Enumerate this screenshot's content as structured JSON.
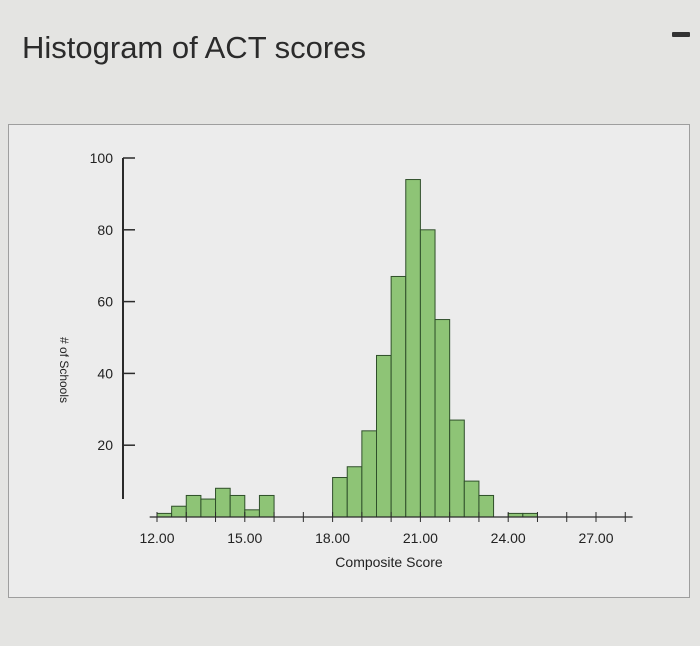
{
  "page": {
    "title": "Histogram of ACT scores"
  },
  "chart_data": {
    "type": "bar",
    "title": "",
    "xlabel": "Composite Score",
    "ylabel": "# of Schools",
    "xlim": [
      11.75,
      28.25
    ],
    "ylim": [
      0,
      100
    ],
    "x_ticks": [
      "12.00",
      "15.00",
      "18.00",
      "21.00",
      "24.00",
      "27.00"
    ],
    "y_ticks": [
      "20",
      "40",
      "60",
      "80",
      "100"
    ],
    "bin_width": 0.5,
    "bins": [
      {
        "start": 12.0,
        "count": 1
      },
      {
        "start": 12.5,
        "count": 3
      },
      {
        "start": 13.0,
        "count": 6
      },
      {
        "start": 13.5,
        "count": 5
      },
      {
        "start": 14.0,
        "count": 8
      },
      {
        "start": 14.5,
        "count": 6
      },
      {
        "start": 15.0,
        "count": 2
      },
      {
        "start": 15.5,
        "count": 6
      },
      {
        "start": 16.0,
        "count": 0
      },
      {
        "start": 16.5,
        "count": 0
      },
      {
        "start": 17.0,
        "count": 0
      },
      {
        "start": 17.5,
        "count": 0
      },
      {
        "start": 18.0,
        "count": 11
      },
      {
        "start": 18.5,
        "count": 14
      },
      {
        "start": 19.0,
        "count": 24
      },
      {
        "start": 19.5,
        "count": 45
      },
      {
        "start": 20.0,
        "count": 67
      },
      {
        "start": 20.5,
        "count": 94
      },
      {
        "start": 21.0,
        "count": 80
      },
      {
        "start": 21.5,
        "count": 55
      },
      {
        "start": 22.0,
        "count": 27
      },
      {
        "start": 22.5,
        "count": 10
      },
      {
        "start": 23.0,
        "count": 6
      },
      {
        "start": 23.5,
        "count": 0
      },
      {
        "start": 24.0,
        "count": 1
      },
      {
        "start": 24.5,
        "count": 1
      }
    ],
    "colors": {
      "bar_fill": "#8ec476",
      "bar_stroke": "#2f4f2a",
      "axis": "#2a2a2a"
    }
  }
}
